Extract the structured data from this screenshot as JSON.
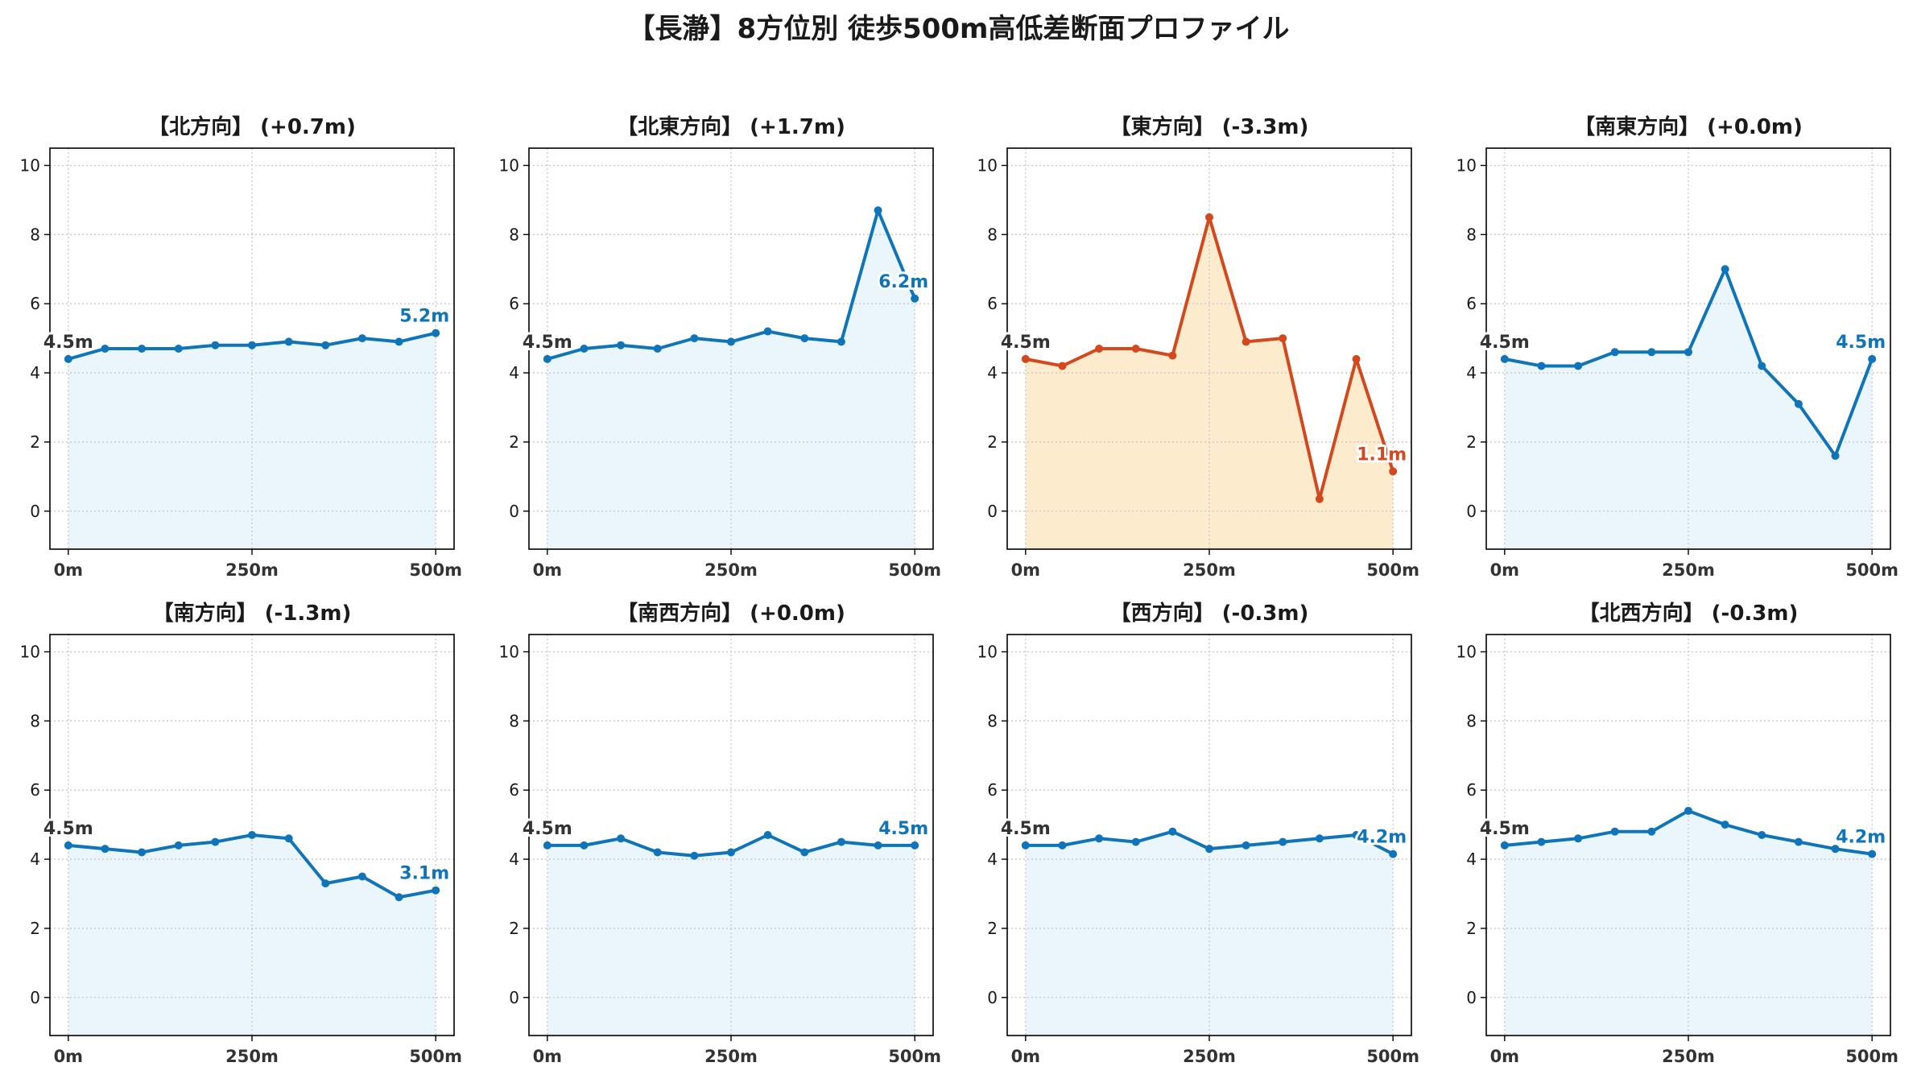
{
  "title": "【長瀞】8方位別 徒歩500m高低差断面プロファイル",
  "colors": {
    "normal_line": "#0f74b8",
    "normal_fill": "#eaf6fc",
    "alert_line": "#d4481d",
    "alert_fill": "#fdebce",
    "start_label": "#333333",
    "grid": "#c8c8c8",
    "axis": "#000000"
  },
  "chart_data": [
    {
      "type": "area",
      "title": "【北方向】 (+0.7m)",
      "highlight": false,
      "x": [
        0,
        50,
        100,
        150,
        200,
        250,
        300,
        350,
        400,
        450,
        500
      ],
      "y": [
        4.4,
        4.7,
        4.7,
        4.7,
        4.8,
        4.8,
        4.9,
        4.8,
        5.0,
        4.9,
        5.15
      ],
      "start_label": "4.5m",
      "end_label": "5.2m",
      "xticks": [
        "0m",
        "250m",
        "500m"
      ],
      "yticks": [
        "0",
        "2",
        "4",
        "6",
        "8",
        "10"
      ],
      "xlim": [
        -25,
        525
      ],
      "ylim": [
        -1.1,
        10.5
      ],
      "grid": true,
      "grid_style": "dotted"
    },
    {
      "type": "area",
      "title": "【北東方向】 (+1.7m)",
      "highlight": false,
      "x": [
        0,
        50,
        100,
        150,
        200,
        250,
        300,
        350,
        400,
        450,
        500
      ],
      "y": [
        4.4,
        4.7,
        4.8,
        4.7,
        5.0,
        4.9,
        5.2,
        5.0,
        4.9,
        8.7,
        6.15
      ],
      "start_label": "4.5m",
      "end_label": "6.2m",
      "xticks": [
        "0m",
        "250m",
        "500m"
      ],
      "yticks": [
        "0",
        "2",
        "4",
        "6",
        "8",
        "10"
      ],
      "xlim": [
        -25,
        525
      ],
      "ylim": [
        -1.1,
        10.5
      ],
      "grid": true,
      "grid_style": "dotted"
    },
    {
      "type": "area",
      "title": "【東方向】 (-3.3m)",
      "highlight": true,
      "x": [
        0,
        50,
        100,
        150,
        200,
        250,
        300,
        350,
        400,
        450,
        500
      ],
      "y": [
        4.4,
        4.2,
        4.7,
        4.7,
        4.5,
        8.5,
        4.9,
        5.0,
        0.35,
        4.4,
        1.15
      ],
      "start_label": "4.5m",
      "end_label": "1.1m",
      "xticks": [
        "0m",
        "250m",
        "500m"
      ],
      "yticks": [
        "0",
        "2",
        "4",
        "6",
        "8",
        "10"
      ],
      "xlim": [
        -25,
        525
      ],
      "ylim": [
        -1.1,
        10.5
      ],
      "grid": true,
      "grid_style": "dotted"
    },
    {
      "type": "area",
      "title": "【南東方向】 (+0.0m)",
      "highlight": false,
      "x": [
        0,
        50,
        100,
        150,
        200,
        250,
        300,
        350,
        400,
        450,
        500
      ],
      "y": [
        4.4,
        4.2,
        4.2,
        4.6,
        4.6,
        4.6,
        7.0,
        4.2,
        3.1,
        1.6,
        4.4
      ],
      "start_label": "4.5m",
      "end_label": "4.5m",
      "xticks": [
        "0m",
        "250m",
        "500m"
      ],
      "yticks": [
        "0",
        "2",
        "4",
        "6",
        "8",
        "10"
      ],
      "xlim": [
        -25,
        525
      ],
      "ylim": [
        -1.1,
        10.5
      ],
      "grid": true,
      "grid_style": "dotted"
    },
    {
      "type": "area",
      "title": "【南方向】 (-1.3m)",
      "highlight": false,
      "x": [
        0,
        50,
        100,
        150,
        200,
        250,
        300,
        350,
        400,
        450,
        500
      ],
      "y": [
        4.4,
        4.3,
        4.2,
        4.4,
        4.5,
        4.7,
        4.6,
        3.3,
        3.5,
        2.9,
        3.1
      ],
      "start_label": "4.5m",
      "end_label": "3.1m",
      "xticks": [
        "0m",
        "250m",
        "500m"
      ],
      "yticks": [
        "0",
        "2",
        "4",
        "6",
        "8",
        "10"
      ],
      "xlim": [
        -25,
        525
      ],
      "ylim": [
        -1.1,
        10.5
      ],
      "grid": true,
      "grid_style": "dotted"
    },
    {
      "type": "area",
      "title": "【南西方向】 (+0.0m)",
      "highlight": false,
      "x": [
        0,
        50,
        100,
        150,
        200,
        250,
        300,
        350,
        400,
        450,
        500
      ],
      "y": [
        4.4,
        4.4,
        4.6,
        4.2,
        4.1,
        4.2,
        4.7,
        4.2,
        4.5,
        4.4,
        4.4
      ],
      "start_label": "4.5m",
      "end_label": "4.5m",
      "xticks": [
        "0m",
        "250m",
        "500m"
      ],
      "yticks": [
        "0",
        "2",
        "4",
        "6",
        "8",
        "10"
      ],
      "xlim": [
        -25,
        525
      ],
      "ylim": [
        -1.1,
        10.5
      ],
      "grid": true,
      "grid_style": "dotted"
    },
    {
      "type": "area",
      "title": "【西方向】 (-0.3m)",
      "highlight": false,
      "x": [
        0,
        50,
        100,
        150,
        200,
        250,
        300,
        350,
        400,
        450,
        500
      ],
      "y": [
        4.4,
        4.4,
        4.6,
        4.5,
        4.8,
        4.3,
        4.4,
        4.5,
        4.6,
        4.7,
        4.15
      ],
      "start_label": "4.5m",
      "end_label": "4.2m",
      "xticks": [
        "0m",
        "250m",
        "500m"
      ],
      "yticks": [
        "0",
        "2",
        "4",
        "6",
        "8",
        "10"
      ],
      "xlim": [
        -25,
        525
      ],
      "ylim": [
        -1.1,
        10.5
      ],
      "grid": true,
      "grid_style": "dotted"
    },
    {
      "type": "area",
      "title": "【北西方向】 (-0.3m)",
      "highlight": false,
      "x": [
        0,
        50,
        100,
        150,
        200,
        250,
        300,
        350,
        400,
        450,
        500
      ],
      "y": [
        4.4,
        4.5,
        4.6,
        4.8,
        4.8,
        5.4,
        5.0,
        4.7,
        4.5,
        4.3,
        4.15
      ],
      "start_label": "4.5m",
      "end_label": "4.2m",
      "xticks": [
        "0m",
        "250m",
        "500m"
      ],
      "yticks": [
        "0",
        "2",
        "4",
        "6",
        "8",
        "10"
      ],
      "xlim": [
        -25,
        525
      ],
      "ylim": [
        -1.1,
        10.5
      ],
      "grid": true,
      "grid_style": "dotted"
    }
  ]
}
